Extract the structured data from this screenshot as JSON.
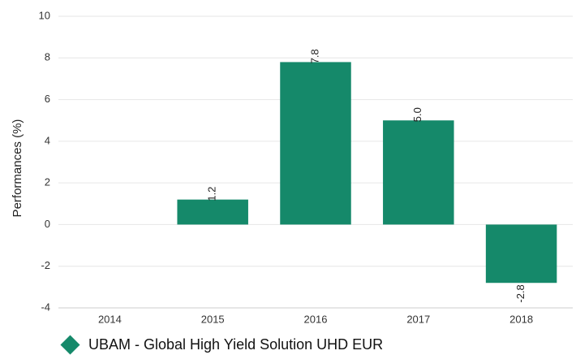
{
  "chart_data": {
    "type": "bar",
    "categories": [
      "2014",
      "2015",
      "2016",
      "2017",
      "2018"
    ],
    "series": [
      {
        "name": "UBAM - Global High Yield Solution UHD EUR",
        "values": [
          null,
          1.2,
          7.8,
          5.0,
          -2.8
        ],
        "labels": [
          "",
          "1.2",
          "7.8",
          "5.0",
          "-2.8"
        ],
        "color": "#15896a"
      }
    ],
    "ylabel": "Performances (%)",
    "ylim": [
      -4,
      10
    ],
    "yticks": [
      "-4",
      "-2",
      "0",
      "2",
      "4",
      "6",
      "8",
      "10"
    ],
    "grid": true,
    "legend_position": "bottom-left"
  }
}
